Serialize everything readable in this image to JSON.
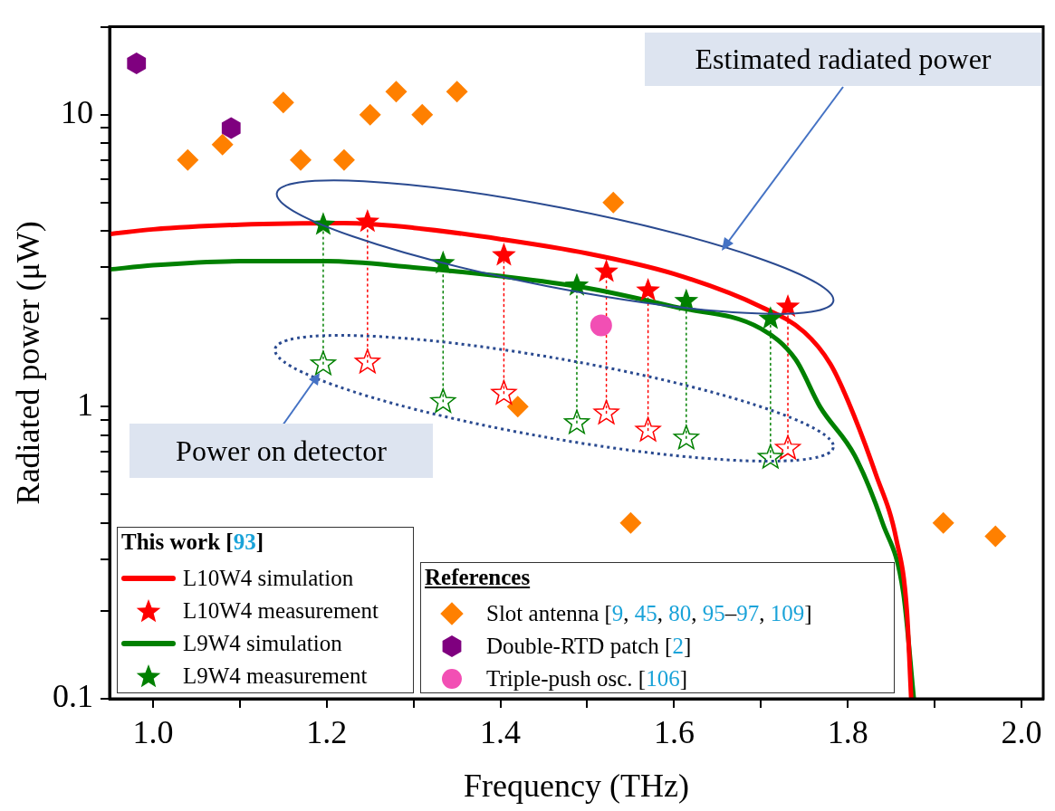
{
  "chart_data": {
    "type": "scatter",
    "xlabel": "Frequency (THz)",
    "ylabel": "Radiated power (μW)",
    "legend_title": "This work [93]",
    "log": "y",
    "grid": false,
    "legend": "bottom left",
    "xlim": [
      0.95,
      2.025
    ],
    "ylim": [
      0.1,
      20
    ],
    "xticks": [
      {
        "value": 1,
        "label": "1.0"
      },
      {
        "value": 1.1,
        "label": null
      },
      {
        "value": 1.2,
        "label": "1.2"
      },
      {
        "value": 1.3,
        "label": null
      },
      {
        "value": 1.4,
        "label": "1.4"
      },
      {
        "value": 1.5,
        "label": null
      },
      {
        "value": 1.6,
        "label": "1.6"
      },
      {
        "value": 1.7,
        "label": null
      },
      {
        "value": 1.8,
        "label": "1.8"
      },
      {
        "value": 1.9,
        "label": null
      },
      {
        "value": 2,
        "label": "2.0"
      }
    ],
    "yticks": [
      0.1,
      {
        "value": 0.2,
        "label": null
      },
      {
        "value": 0.3,
        "label": null
      },
      {
        "value": 0.4,
        "label": null
      },
      {
        "value": 0.5,
        "label": null
      },
      {
        "value": 0.6,
        "label": null
      },
      {
        "value": 0.7,
        "label": null
      },
      {
        "value": 0.8,
        "label": null
      },
      {
        "value": 0.9,
        "label": null
      },
      1,
      {
        "value": 2,
        "label": null
      },
      {
        "value": 3,
        "label": null
      },
      {
        "value": 4,
        "label": null
      },
      {
        "value": 5,
        "label": null
      },
      {
        "value": 6,
        "label": null
      },
      {
        "value": 7,
        "label": null
      },
      {
        "value": 8,
        "label": null
      },
      {
        "value": 9,
        "label": null
      },
      10,
      {
        "value": 20,
        "label": null
      }
    ],
    "annotations": [
      "Estimated radiated power",
      "Power on detector",
      "References"
    ],
    "series": [
      {
        "name": "L10W4 simulation",
        "type": "line",
        "color": "#ff0000",
        "x": [
          0.95,
          1.0,
          1.1,
          1.22,
          1.3,
          1.4,
          1.5,
          1.6,
          1.7,
          1.75,
          1.78,
          1.8,
          1.832,
          1.856,
          1.868,
          1.873
        ],
        "values": [
          3.9,
          4.05,
          4.2,
          4.25,
          4.1,
          3.75,
          3.35,
          2.85,
          2.2,
          1.8,
          1.4,
          1.05,
          0.59,
          0.35,
          0.2,
          0.1
        ]
      },
      {
        "name": "L10W4 measurement",
        "type": "scatter",
        "marker": "star",
        "color": "#ff0000",
        "x": [
          1.247,
          1.404,
          1.522,
          1.57,
          1.731
        ],
        "values": [
          4.3,
          3.3,
          2.9,
          2.5,
          2.2
        ]
      },
      {
        "name": "L9W4 simulation",
        "type": "line",
        "color": "#008000",
        "x": [
          0.95,
          1.0,
          1.1,
          1.2,
          1.3,
          1.4,
          1.5,
          1.6,
          1.7,
          1.74,
          1.768,
          1.808,
          1.84,
          1.864,
          1.876
        ],
        "values": [
          2.95,
          3.05,
          3.15,
          3.15,
          3.0,
          2.8,
          2.55,
          2.2,
          1.85,
          1.45,
          1.0,
          0.68,
          0.4,
          0.23,
          0.1
        ]
      },
      {
        "name": "L9W4 measurement",
        "type": "scatter",
        "marker": "star",
        "color": "#008000",
        "x": [
          1.196,
          1.334,
          1.488,
          1.614,
          1.711
        ],
        "values": [
          4.2,
          3.1,
          2.6,
          2.3,
          2.0
        ]
      },
      {
        "name": "Slot antenna [9, 45, 80, 95–97, 109]",
        "type": "scatter",
        "marker": "diamond",
        "color": "#ff8000",
        "x": [
          1.04,
          1.08,
          1.15,
          1.17,
          1.22,
          1.25,
          1.28,
          1.31,
          1.35,
          1.42,
          1.53,
          1.55,
          1.91,
          1.97
        ],
        "values": [
          7,
          7.9,
          11,
          7,
          7,
          10,
          12,
          10,
          12,
          1.0,
          5.0,
          0.4,
          0.4,
          0.36
        ]
      },
      {
        "name": "Double-RTD patch [2]",
        "type": "scatter",
        "color": "#7f007f",
        "x": [
          0.981,
          1.09
        ],
        "values": [
          15,
          9
        ]
      },
      {
        "name": "Triple-push osc. [106]",
        "type": "scatter",
        "marker": "circle",
        "color": "#f24fb4",
        "x": [
          1.516
        ],
        "values": [
          1.9
        ]
      },
      {
        "type": "scatter",
        "marker": "star",
        "color": "#ff0000",
        "x": [
          1.247,
          1.404,
          1.522,
          1.57,
          1.731
        ],
        "values": [
          1.42,
          1.11,
          0.95,
          0.83,
          0.72
        ]
      },
      {
        "type": "scatter",
        "marker": "star",
        "color": "#008000",
        "x": [
          1.196,
          1.334,
          1.488,
          1.614,
          1.711
        ],
        "values": [
          1.4,
          1.04,
          0.88,
          0.78,
          0.67
        ]
      },
      {
        "type": "line",
        "line_style": "dotted",
        "color": "#ff0000",
        "x": [
          1.247,
          1.247
        ],
        "values": [
          1.42,
          4.3
        ]
      },
      {
        "type": "line",
        "line_style": "dotted",
        "color": "#ff0000",
        "x": [
          1.404,
          1.404
        ],
        "values": [
          1.11,
          3.3
        ]
      },
      {
        "type": "line",
        "line_style": "dotted",
        "color": "#ff0000",
        "x": [
          1.522,
          1.522
        ],
        "values": [
          0.95,
          2.9
        ]
      },
      {
        "type": "line",
        "line_style": "dotted",
        "color": "#ff0000",
        "x": [
          1.57,
          1.57
        ],
        "values": [
          0.83,
          2.5
        ]
      },
      {
        "type": "line",
        "line_style": "dotted",
        "color": "#ff0000",
        "x": [
          1.731,
          1.731
        ],
        "values": [
          0.72,
          2.2
        ]
      },
      {
        "type": "line",
        "line_style": "dotted",
        "color": "#008000",
        "x": [
          1.196,
          1.196
        ],
        "values": [
          1.4,
          4.2
        ]
      },
      {
        "type": "line",
        "line_style": "dotted",
        "color": "#008000",
        "x": [
          1.334,
          1.334
        ],
        "values": [
          1.04,
          3.1
        ]
      },
      {
        "type": "line",
        "line_style": "dotted",
        "color": "#008000",
        "x": [
          1.488,
          1.488
        ],
        "values": [
          0.88,
          2.6
        ]
      },
      {
        "type": "line",
        "line_style": "dotted",
        "color": "#008000",
        "x": [
          1.614,
          1.614
        ],
        "values": [
          0.78,
          2.3
        ]
      },
      {
        "type": "line",
        "line_style": "dotted",
        "color": "#008000",
        "x": [
          1.711,
          1.711
        ],
        "values": [
          0.67,
          2.0
        ]
      }
    ]
  }
}
